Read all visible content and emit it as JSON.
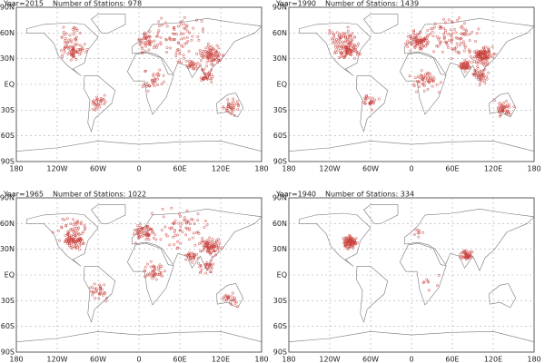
{
  "panels": [
    {
      "year": "Year=2015",
      "stations": "Number of Stations: 978"
    },
    {
      "year": "Year=1990",
      "stations": "Number of Stations: 1439"
    },
    {
      "year": "Year=1965",
      "stations": "Number of Stations: 1022"
    },
    {
      "year": "Year=1940",
      "stations": "Number of Stations: 334"
    }
  ],
  "lon_labels": [
    "180",
    "120W",
    "60W",
    "0",
    "60E",
    "120E",
    "180"
  ],
  "lat_labels": [
    "90N",
    "60N",
    "30N",
    "EQ",
    "30S",
    "60S",
    "90S"
  ]
}
